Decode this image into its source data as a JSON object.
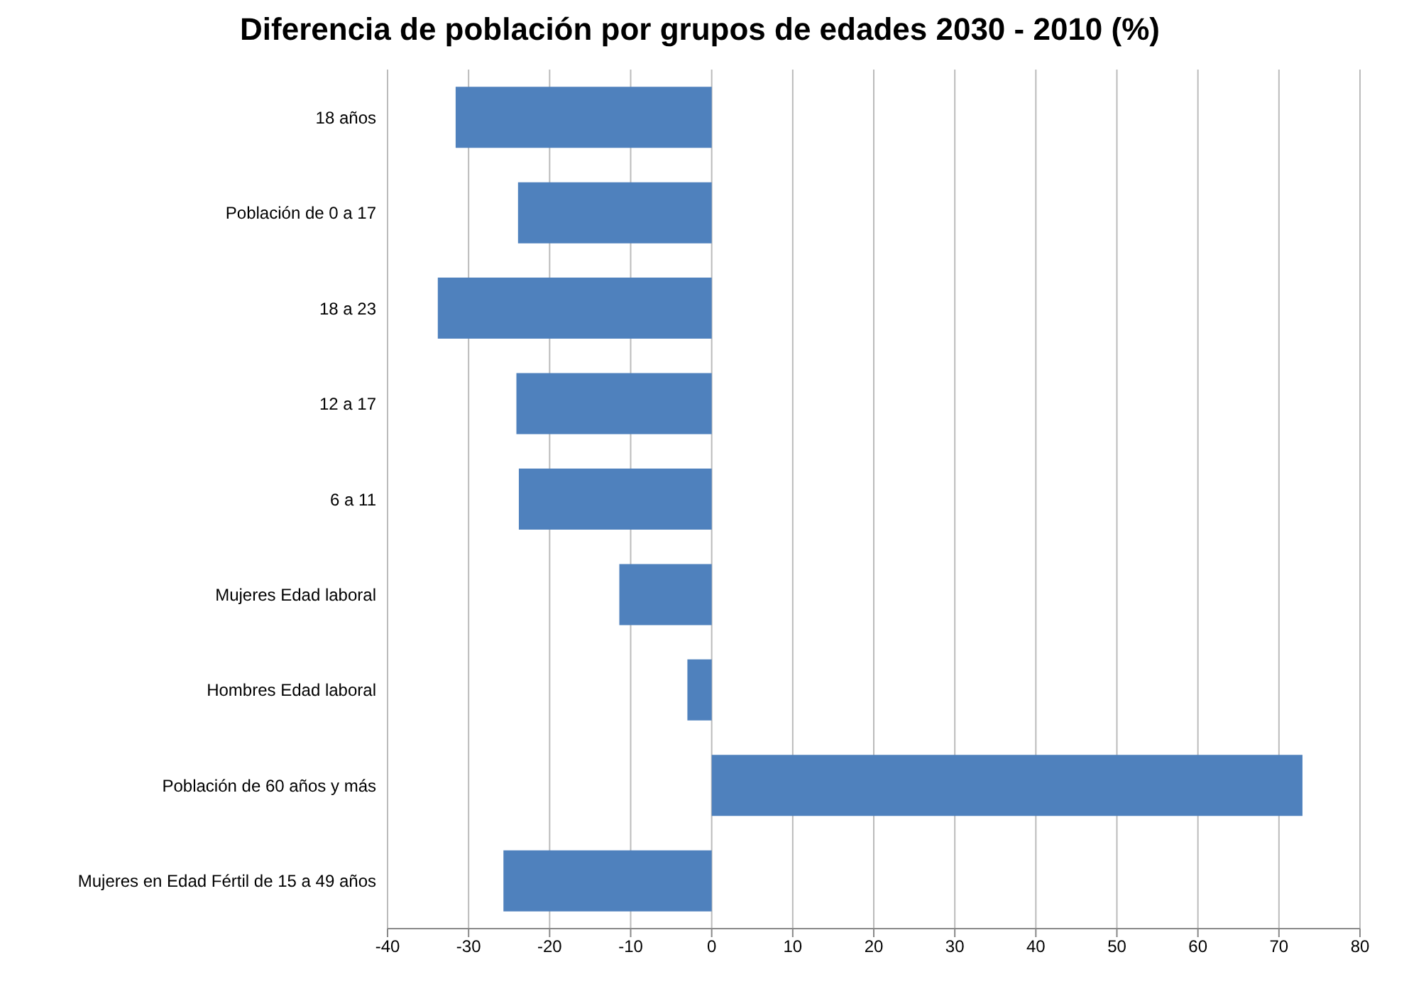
{
  "chart_data": {
    "type": "bar",
    "orientation": "horizontal",
    "title": "Diferencia de población por grupos de edades 2030 - 2010 (%)",
    "categories": [
      "18 años",
      "Población de 0 a 17",
      "18 a 23",
      "12 a 17",
      "6 a 11",
      "Mujeres Edad laboral",
      "Hombres Edad laboral",
      "Población de 60 años y más",
      "Mujeres en Edad Fértil de 15 a 49 años"
    ],
    "values": [
      -31.6,
      -23.9,
      -33.8,
      -24.1,
      -23.8,
      -11.4,
      -3,
      72.9,
      -25.7
    ],
    "color": "#4f81bd",
    "xlim": [
      -40,
      80
    ],
    "xticks": [
      -40,
      -30,
      -20,
      -10,
      0,
      10,
      20,
      30,
      40,
      50,
      60,
      70,
      80
    ],
    "grid": "x"
  }
}
